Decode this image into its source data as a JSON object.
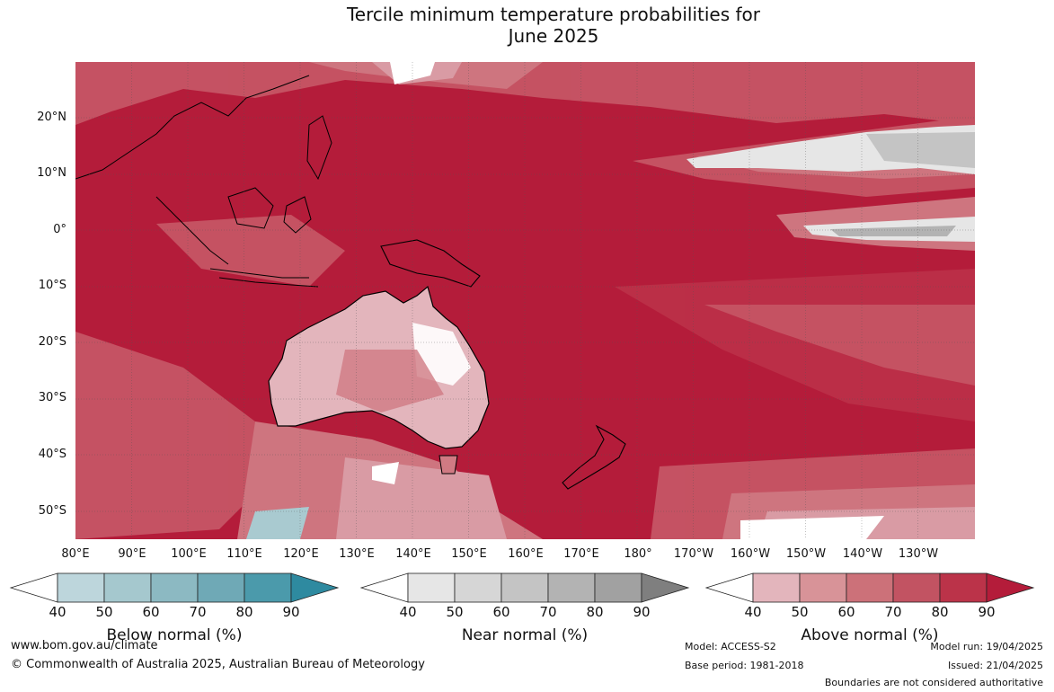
{
  "title_line1": "Tercile minimum temperature probabilities for",
  "title_line2": "June 2025",
  "map": {
    "projection": "equirectangular",
    "lon_range": [
      80,
      240
    ],
    "lat_range": [
      -55,
      30
    ],
    "lat_labels": [
      "20°N",
      "10°N",
      "0°",
      "10°S",
      "20°S",
      "30°S",
      "40°S",
      "50°S"
    ],
    "lon_labels": [
      "80°E",
      "90°E",
      "100°E",
      "110°E",
      "120°E",
      "130°E",
      "140°E",
      "150°E",
      "160°E",
      "170°E",
      "180°",
      "170°W",
      "160°W",
      "150°W",
      "140°W",
      "130°W"
    ],
    "dominant_category": "Above normal",
    "dominant_probability": "80-90%",
    "colors": {
      "ocean_dominant": "#b41c3a",
      "above_80": "#bc3048",
      "above_70": "#c65565",
      "above_60": "#d07a83",
      "above_50": "#dba2aa",
      "above_40": "#e3b5bc",
      "near_normal": "#d6d6d6",
      "below_normal": "#a9cad0"
    }
  },
  "legends": [
    {
      "title": "Below normal (%)",
      "ticks": [
        "40",
        "50",
        "60",
        "70",
        "80",
        "90"
      ],
      "colors": [
        "#ffffff",
        "#bdd6dc",
        "#a5c8ce",
        "#8cb9c2",
        "#6fa9b6",
        "#4b9aab",
        "#2e8aa0"
      ]
    },
    {
      "title": "Near normal (%)",
      "ticks": [
        "40",
        "50",
        "60",
        "70",
        "80",
        "90"
      ],
      "colors": [
        "#ffffff",
        "#e6e6e6",
        "#d6d6d6",
        "#c4c4c4",
        "#b3b3b3",
        "#a1a1a1",
        "#7f7f7f"
      ]
    },
    {
      "title": "Above normal (%)",
      "ticks": [
        "40",
        "50",
        "60",
        "70",
        "80",
        "90"
      ],
      "colors": [
        "#ffffff",
        "#e3b5bc",
        "#d89398",
        "#cc7179",
        "#c25362",
        "#bb3349",
        "#b41c3a"
      ]
    }
  ],
  "footer": {
    "website": "www.bom.gov.au/climate",
    "copyright": "© Commonwealth of Australia 2025, Australian Bureau of Meteorology",
    "model": "Model: ACCESS-S2",
    "base_period": "Base period: 1981-2018",
    "model_run": "Model run: 19/04/2025",
    "issued": "Issued: 21/04/2025",
    "disclaimer": "Boundaries are not considered authoritative"
  }
}
